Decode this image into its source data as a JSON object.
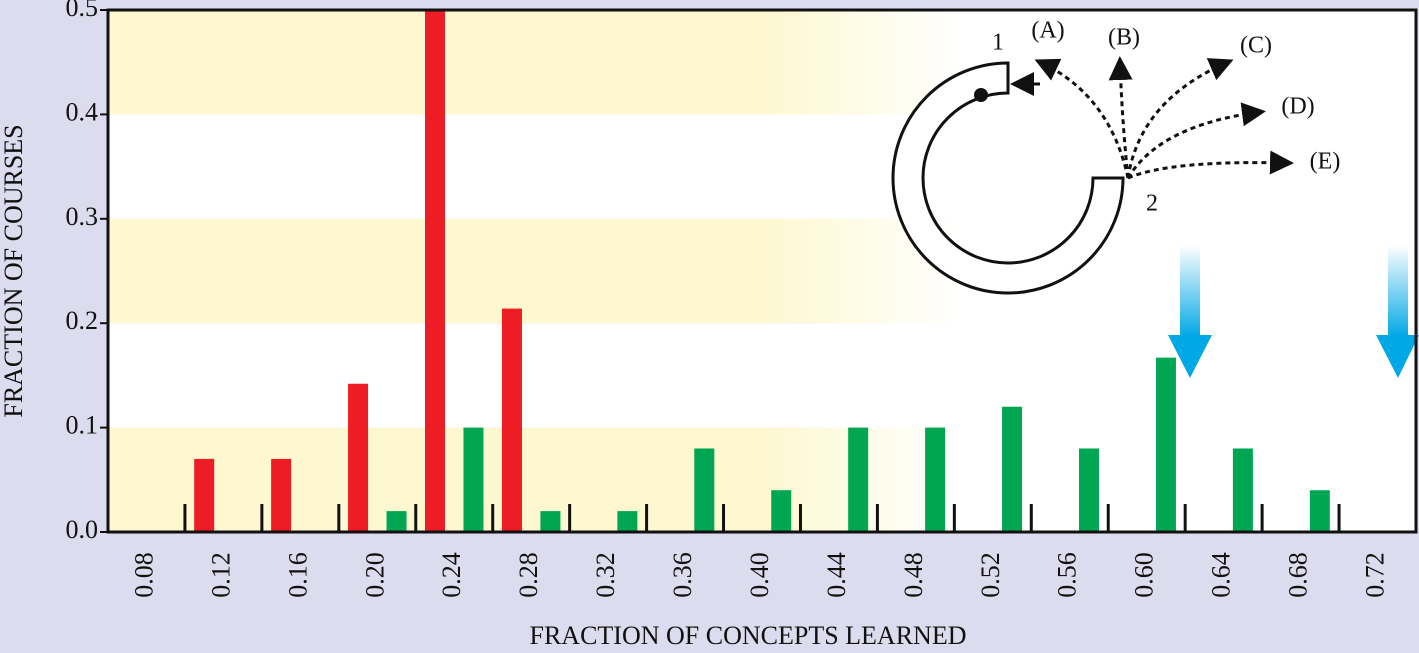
{
  "chart_data": {
    "type": "bar",
    "xlabel": "FRACTION OF CONCEPTS LEARNED",
    "ylabel": "FRACTION OF COURSES",
    "xlim": [
      0.06,
      0.74
    ],
    "ylim": [
      0,
      0.5
    ],
    "xticks": [
      0.08,
      0.12,
      0.16,
      {
        "value": 0.2,
        "label": "0.20"
      },
      0.24,
      0.28,
      0.32,
      0.36,
      {
        "value": 0.4,
        "label": "0.40"
      },
      0.44,
      0.48,
      0.52,
      0.56,
      {
        "value": 0.6,
        "label": "0.60"
      },
      0.64,
      0.68,
      0.72
    ],
    "xminorticks": [
      0.1,
      0.14,
      0.18,
      0.22,
      0.26,
      0.3,
      0.34,
      0.38,
      0.42,
      0.46,
      0.5,
      0.54,
      0.58,
      0.62,
      0.66,
      0.7
    ],
    "yticks": [
      {
        "value": 0,
        "label": "0.0"
      },
      0.1,
      0.2,
      0.3,
      0.4,
      0.5
    ],
    "series": [
      {
        "color": "#ee1c25",
        "x": [
          0.11,
          0.15,
          0.19,
          0.23,
          0.27
        ],
        "values": [
          0.07,
          0.07,
          0.142,
          0.5,
          0.214
        ]
      },
      {
        "color": "#00a651",
        "x": [
          0.21,
          0.25,
          0.29,
          0.33,
          0.37,
          0.41,
          0.45,
          0.49,
          0.53,
          0.57,
          0.61,
          0.65,
          0.69
        ],
        "values": [
          0.02,
          0.1,
          0.02,
          0.02,
          0.08,
          0.04,
          0.1,
          0.1,
          0.12,
          0.08,
          0.167,
          0.08,
          0.04
        ]
      }
    ],
    "annotations": [
      "1",
      "(A)",
      "(B)",
      "(C)",
      "(D)",
      "(E)",
      "2"
    ]
  }
}
